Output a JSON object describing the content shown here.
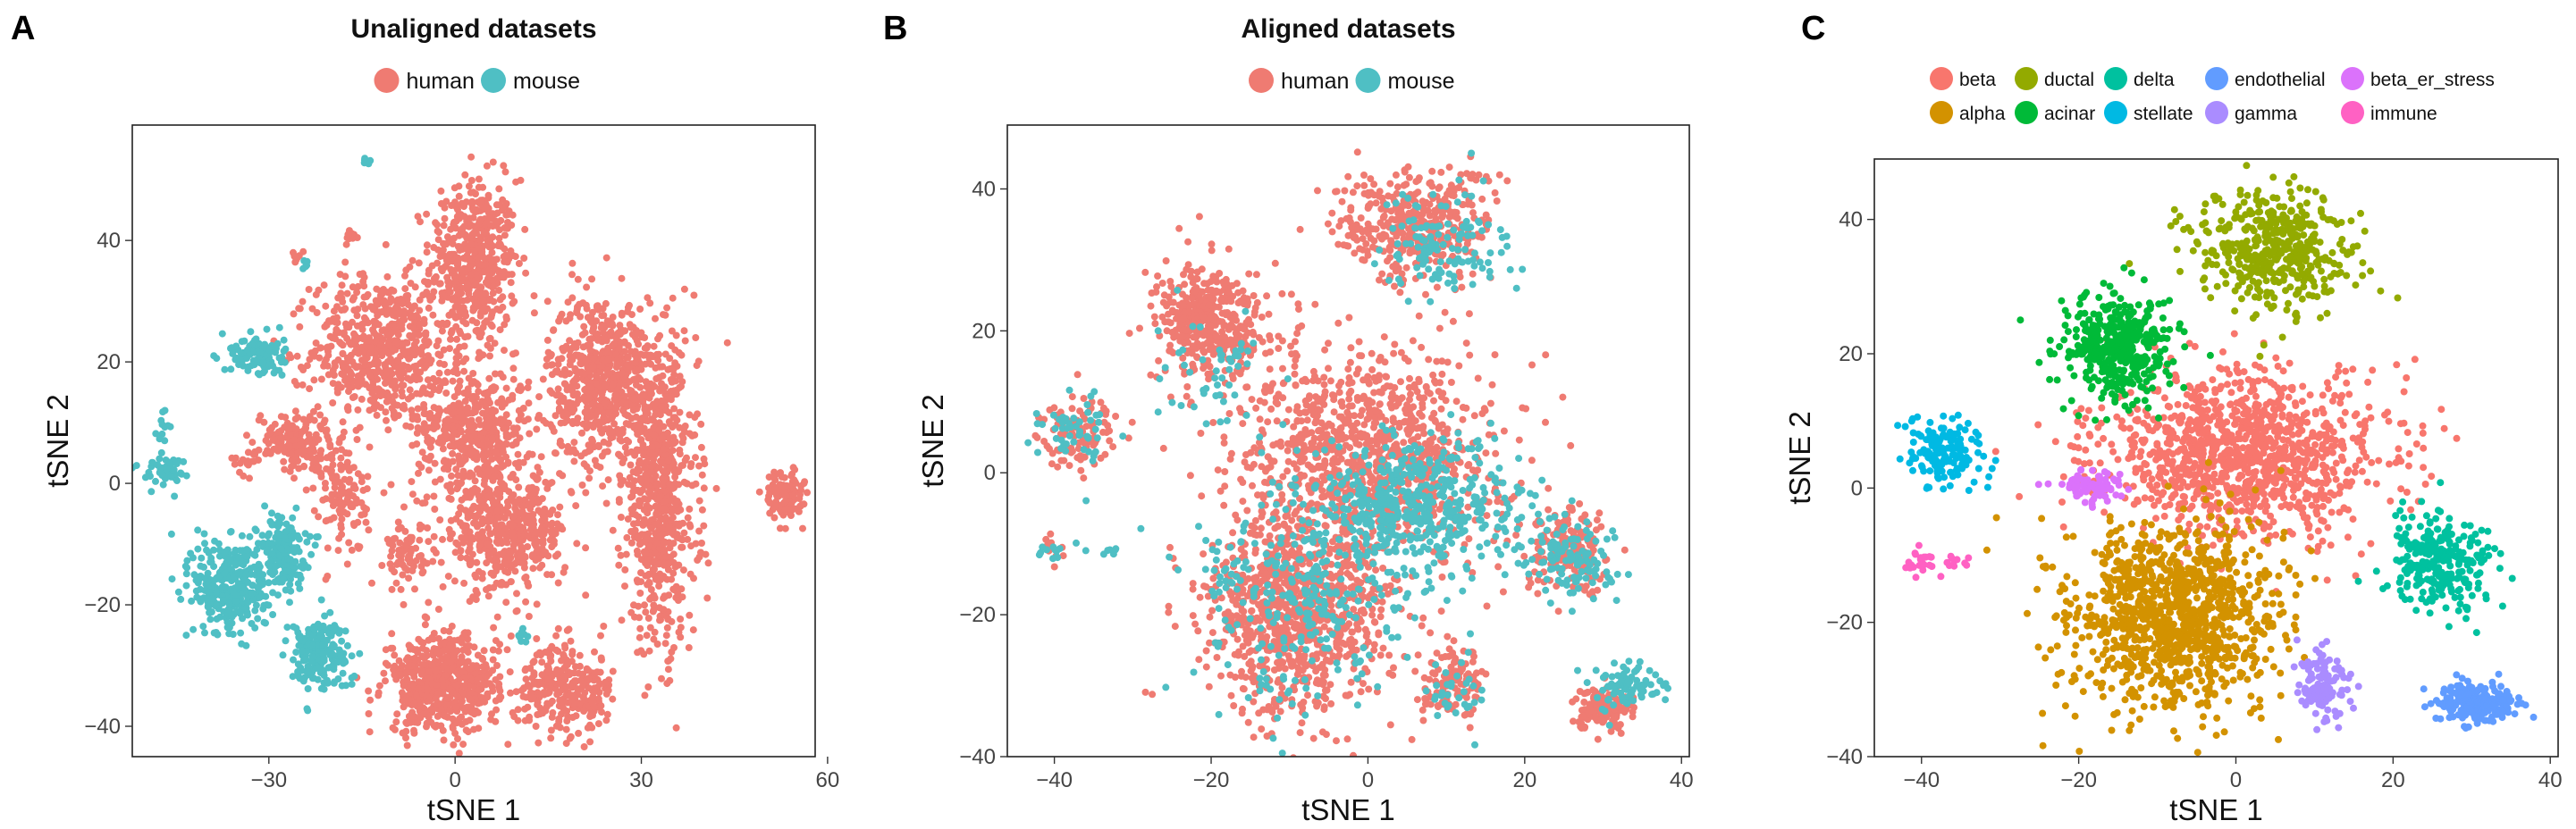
{
  "chart_data": [
    {
      "panel": "A",
      "type": "scatter",
      "title": "Unaligned datasets",
      "xlabel": "tSNE 1",
      "ylabel": "tSNE 2",
      "xlim": [
        -52,
        58
      ],
      "ylim": [
        -45,
        59
      ],
      "xticks": [
        -30,
        0,
        30,
        60
      ],
      "yticks": [
        -40,
        -20,
        0,
        20,
        40
      ],
      "grid": false,
      "legend_position": "top",
      "series": [
        {
          "name": "human",
          "color": "#EF7B72",
          "clusters": [
            {
              "x": 3,
              "y": 36,
              "sx": 3.5,
              "sy": 7,
              "n": 520
            },
            {
              "x": -12,
              "y": 22,
              "sx": 5.5,
              "sy": 6,
              "n": 600
            },
            {
              "x": 3,
              "y": 9,
              "sx": 4.5,
              "sy": 5,
              "n": 450
            },
            {
              "x": 24,
              "y": 17,
              "sx": 4.5,
              "sy": 7,
              "n": 650
            },
            {
              "x": 33,
              "y": -3,
              "sx": 3,
              "sy": 12,
              "n": 650
            },
            {
              "x": 8,
              "y": -8,
              "sx": 5,
              "sy": 5,
              "n": 500
            },
            {
              "x": -26,
              "y": 7,
              "sx": 3,
              "sy": 2.5,
              "n": 150
            },
            {
              "x": -18,
              "y": -2,
              "sx": 2,
              "sy": 5,
              "n": 120
            },
            {
              "x": -8,
              "y": -12,
              "sx": 1.5,
              "sy": 3,
              "n": 70
            },
            {
              "x": -2,
              "y": -33,
              "sx": 4.5,
              "sy": 4,
              "n": 550
            },
            {
              "x": 16,
              "y": -33,
              "sx": 3,
              "sy": 3.5,
              "n": 200
            },
            {
              "x": 53,
              "y": -2,
              "sx": 1.5,
              "sy": 2,
              "n": 120
            },
            {
              "x": 22,
              "y": -35,
              "sx": 2,
              "sy": 3,
              "n": 90
            },
            {
              "x": -25,
              "y": 37,
              "sx": 0.7,
              "sy": 0.7,
              "n": 8
            },
            {
              "x": -17,
              "y": 41,
              "sx": 0.6,
              "sy": 0.7,
              "n": 10
            },
            {
              "x": -34,
              "y": 4,
              "sx": 1,
              "sy": 1,
              "n": 15
            }
          ]
        },
        {
          "name": "mouse",
          "color": "#4FBFC4",
          "clusters": [
            {
              "x": -32,
              "y": 21,
              "sx": 2.2,
              "sy": 1.8,
              "n": 110
            },
            {
              "x": -36,
              "y": -17,
              "sx": 3,
              "sy": 4,
              "n": 330
            },
            {
              "x": -28,
              "y": -11,
              "sx": 2,
              "sy": 3,
              "n": 170
            },
            {
              "x": -22,
              "y": -28,
              "sx": 2.5,
              "sy": 3,
              "n": 190
            },
            {
              "x": -47,
              "y": 2,
              "sx": 1.8,
              "sy": 1.2,
              "n": 45
            },
            {
              "x": -47,
              "y": 10,
              "sx": 0.6,
              "sy": 1.8,
              "n": 12
            },
            {
              "x": -14,
              "y": 53,
              "sx": 0.4,
              "sy": 0.4,
              "n": 7
            },
            {
              "x": -24,
              "y": 36,
              "sx": 0.5,
              "sy": 0.5,
              "n": 5
            },
            {
              "x": 11,
              "y": -25,
              "sx": 0.7,
              "sy": 0.7,
              "n": 8
            }
          ]
        }
      ]
    },
    {
      "panel": "B",
      "type": "scatter",
      "title": "Aligned datasets",
      "xlabel": "tSNE 1",
      "ylabel": "tSNE 2",
      "xlim": [
        -46,
        41
      ],
      "ylim": [
        -40,
        49
      ],
      "xticks": [
        -40,
        -20,
        0,
        20,
        40
      ],
      "yticks": [
        -40,
        -20,
        0,
        20,
        40
      ],
      "grid": false,
      "legend_position": "top",
      "series": [
        {
          "name": "human",
          "color": "#EF7B72",
          "clusters": [
            {
              "x": 6,
              "y": 35,
              "sx": 5,
              "sy": 4,
              "n": 380
            },
            {
              "x": -20,
              "y": 21,
              "sx": 3.5,
              "sy": 4,
              "n": 420
            },
            {
              "x": 0,
              "y": 3,
              "sx": 8,
              "sy": 7,
              "n": 1000
            },
            {
              "x": -9,
              "y": -20,
              "sx": 6,
              "sy": 7,
              "n": 900
            },
            {
              "x": 26,
              "y": -11,
              "sx": 3,
              "sy": 3,
              "n": 180
            },
            {
              "x": 11,
              "y": -30,
              "sx": 2,
              "sy": 2.5,
              "n": 110
            },
            {
              "x": 30,
              "y": -33,
              "sx": 2,
              "sy": 1.5,
              "n": 120
            },
            {
              "x": -37,
              "y": 6,
              "sx": 2.5,
              "sy": 2.5,
              "n": 110
            },
            {
              "x": -40,
              "y": -11,
              "sx": 0.8,
              "sy": 1,
              "n": 10
            }
          ]
        },
        {
          "name": "mouse",
          "color": "#4FBFC4",
          "clusters": [
            {
              "x": 10,
              "y": 32,
              "sx": 4,
              "sy": 4,
              "n": 120
            },
            {
              "x": 6,
              "y": -5,
              "sx": 7,
              "sy": 5,
              "n": 500
            },
            {
              "x": -8,
              "y": -18,
              "sx": 7,
              "sy": 7,
              "n": 260
            },
            {
              "x": 26,
              "y": -12,
              "sx": 3,
              "sy": 3,
              "n": 110
            },
            {
              "x": 33,
              "y": -30,
              "sx": 2,
              "sy": 1.5,
              "n": 80
            },
            {
              "x": -37,
              "y": 6,
              "sx": 2.5,
              "sy": 2.5,
              "n": 50
            },
            {
              "x": -40,
              "y": -11,
              "sx": 1,
              "sy": 1,
              "n": 12
            },
            {
              "x": -33,
              "y": -11,
              "sx": 1,
              "sy": 0.6,
              "n": 8
            },
            {
              "x": 11,
              "y": -31,
              "sx": 2,
              "sy": 2,
              "n": 30
            },
            {
              "x": -19,
              "y": 14,
              "sx": 4,
              "sy": 4,
              "n": 50
            }
          ]
        }
      ]
    },
    {
      "panel": "C",
      "type": "scatter",
      "title": "",
      "xlabel": "tSNE 1",
      "ylabel": "tSNE 2",
      "xlim": [
        -46,
        41
      ],
      "ylim": [
        -40,
        49
      ],
      "xticks": [
        -40,
        -20,
        0,
        20,
        40
      ],
      "yticks": [
        -40,
        -20,
        0,
        20,
        40
      ],
      "grid": false,
      "legend_position": "top",
      "series": [
        {
          "name": "beta",
          "color": "#F8766D",
          "clusters": [
            {
              "x": 1,
              "y": 5,
              "sx": 9,
              "sy": 6,
              "n": 1100
            }
          ]
        },
        {
          "name": "alpha",
          "color": "#D39200",
          "clusters": [
            {
              "x": -8,
              "y": -19,
              "sx": 6.5,
              "sy": 7,
              "n": 1100
            }
          ]
        },
        {
          "name": "ductal",
          "color": "#93AA00",
          "clusters": [
            {
              "x": 5,
              "y": 35,
              "sx": 5,
              "sy": 4.5,
              "n": 450
            }
          ]
        },
        {
          "name": "acinar",
          "color": "#00BA38",
          "clusters": [
            {
              "x": -15,
              "y": 21,
              "sx": 3.5,
              "sy": 4,
              "n": 420
            }
          ]
        },
        {
          "name": "delta",
          "color": "#00C19F",
          "clusters": [
            {
              "x": 26,
              "y": -11,
              "sx": 3.5,
              "sy": 3.5,
              "n": 270
            }
          ]
        },
        {
          "name": "stellate",
          "color": "#00B9E3",
          "clusters": [
            {
              "x": -37,
              "y": 5,
              "sx": 2.5,
              "sy": 2.5,
              "n": 150
            }
          ]
        },
        {
          "name": "endothelial",
          "color": "#619CFF",
          "clusters": [
            {
              "x": 31,
              "y": -32,
              "sx": 2.5,
              "sy": 1.5,
              "n": 210
            }
          ]
        },
        {
          "name": "gamma",
          "color": "#AA8CFF",
          "clusters": [
            {
              "x": 11,
              "y": -29,
              "sx": 2,
              "sy": 2.5,
              "n": 120
            }
          ]
        },
        {
          "name": "beta_er_stress",
          "color": "#DB72FB",
          "clusters": [
            {
              "x": -18,
              "y": 0,
              "sx": 2,
              "sy": 1.3,
              "n": 70
            }
          ]
        },
        {
          "name": "immune",
          "color": "#FF61C3",
          "clusters": [
            {
              "x": -40,
              "y": -11,
              "sx": 1,
              "sy": 0.8,
              "n": 22
            },
            {
              "x": -35,
              "y": -11,
              "sx": 0.9,
              "sy": 0.5,
              "n": 10
            }
          ]
        }
      ]
    }
  ]
}
